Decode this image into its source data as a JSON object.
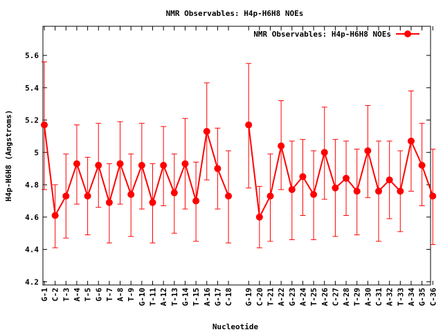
{
  "chart_data": {
    "type": "line",
    "title": "NMR Observables: H4p-H6H8 NOEs",
    "xlabel": "Nucleotide",
    "ylabel": "H4p-H6H8 (Angstroms)",
    "ylim": [
      4.18,
      5.78
    ],
    "yticks": [
      4.2,
      4.4,
      4.6,
      4.8,
      5,
      5.2,
      5.4,
      5.6
    ],
    "ytick_labels": [
      "4.2",
      "4.4",
      "4.6",
      "4.8",
      "5",
      "5.2",
      "5.4",
      "5.6"
    ],
    "grid": false,
    "legend_position": "top-right",
    "colors": {
      "series": "#ff0000",
      "axis": "#000000"
    },
    "series": [
      {
        "name": "NMR Observables: H4p-H6H8 NOEs",
        "points": [
          {
            "x": "G-1",
            "y": 5.17,
            "err": [
              4.77,
              5.56
            ]
          },
          {
            "x": "C-2",
            "y": 4.61,
            "err": [
              4.41,
              4.8
            ]
          },
          {
            "x": "T-3",
            "y": 4.73,
            "err": [
              4.47,
              4.99
            ]
          },
          {
            "x": "A-4",
            "y": 4.93,
            "err": [
              4.68,
              5.17
            ]
          },
          {
            "x": "T-5",
            "y": 4.73,
            "err": [
              4.49,
              4.97
            ]
          },
          {
            "x": "G-6",
            "y": 4.92,
            "err": [
              4.66,
              5.18
            ]
          },
          {
            "x": "T-7",
            "y": 4.69,
            "err": [
              4.44,
              4.93
            ]
          },
          {
            "x": "A-8",
            "y": 4.93,
            "err": [
              4.68,
              5.19
            ]
          },
          {
            "x": "T-9",
            "y": 4.74,
            "err": [
              4.48,
              4.99
            ]
          },
          {
            "x": "G-10",
            "y": 4.92,
            "err": [
              4.65,
              5.18
            ]
          },
          {
            "x": "T-11",
            "y": 4.69,
            "err": [
              4.44,
              4.93
            ]
          },
          {
            "x": "A-12",
            "y": 4.92,
            "err": [
              4.67,
              5.16
            ]
          },
          {
            "x": "T-13",
            "y": 4.75,
            "err": [
              4.5,
              4.99
            ]
          },
          {
            "x": "G-14",
            "y": 4.93,
            "err": [
              4.65,
              5.21
            ]
          },
          {
            "x": "T-15",
            "y": 4.7,
            "err": [
              4.45,
              4.94
            ]
          },
          {
            "x": "A-16",
            "y": 5.13,
            "err": [
              4.83,
              5.43
            ]
          },
          {
            "x": "G-17",
            "y": 4.9,
            "err": [
              4.65,
              5.15
            ]
          },
          {
            "x": "C-18",
            "y": 4.73,
            "err": [
              4.44,
              5.01
            ]
          },
          {
            "x": "G-19",
            "y": 5.17,
            "err": [
              4.78,
              5.55
            ]
          },
          {
            "x": "C-20",
            "y": 4.6,
            "err": [
              4.41,
              4.79
            ]
          },
          {
            "x": "T-21",
            "y": 4.73,
            "err": [
              4.45,
              4.99
            ]
          },
          {
            "x": "A-22",
            "y": 5.04,
            "err": [
              4.77,
              5.32
            ]
          },
          {
            "x": "G-23",
            "y": 4.77,
            "err": [
              4.46,
              5.07
            ]
          },
          {
            "x": "A-24",
            "y": 4.85,
            "err": [
              4.61,
              5.08
            ]
          },
          {
            "x": "T-25",
            "y": 4.74,
            "err": [
              4.46,
              5.01
            ]
          },
          {
            "x": "A-26",
            "y": 5.0,
            "err": [
              4.71,
              5.28
            ]
          },
          {
            "x": "C-27",
            "y": 4.78,
            "err": [
              4.48,
              5.08
            ]
          },
          {
            "x": "A-28",
            "y": 4.84,
            "err": [
              4.61,
              5.07
            ]
          },
          {
            "x": "T-29",
            "y": 4.76,
            "err": [
              4.49,
              5.02
            ]
          },
          {
            "x": "A-30",
            "y": 5.01,
            "err": [
              4.72,
              5.29
            ]
          },
          {
            "x": "C-31",
            "y": 4.76,
            "err": [
              4.45,
              5.07
            ]
          },
          {
            "x": "A-32",
            "y": 4.83,
            "err": [
              4.59,
              5.07
            ]
          },
          {
            "x": "T-33",
            "y": 4.76,
            "err": [
              4.51,
              5.01
            ]
          },
          {
            "x": "A-34",
            "y": 5.07,
            "err": [
              4.76,
              5.38
            ]
          },
          {
            "x": "G-35",
            "y": 4.92,
            "err": [
              4.67,
              5.18
            ]
          },
          {
            "x": "C-36",
            "y": 4.73,
            "err": [
              4.43,
              5.02
            ]
          }
        ]
      }
    ]
  }
}
